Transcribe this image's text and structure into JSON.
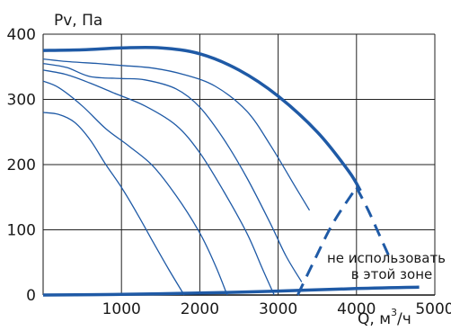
{
  "chart_data": {
    "type": "line",
    "title": "",
    "ylabel": "Pv, Па",
    "xlabel_main": "Q, м",
    "xlabel_sup": "3",
    "xlabel_tail": "/ч",
    "xlim": [
      0,
      5000
    ],
    "ylim": [
      0,
      400
    ],
    "xticks": [
      "1000",
      "2000",
      "3000",
      "4000",
      "5000"
    ],
    "yticks": [
      "0",
      "100",
      "200",
      "300",
      "400"
    ],
    "grid": true,
    "annotation": [
      "не использовать",
      "в этой зоне"
    ],
    "colors": {
      "curve": "#1f5aa6",
      "grid": "#222222",
      "axis": "#111111"
    },
    "series": [
      {
        "role": "max-envelope",
        "style": "thick",
        "x": [
          0,
          500,
          1000,
          1500,
          2000,
          2500,
          3000,
          3500,
          3900,
          4050
        ],
        "y": [
          375,
          376,
          379,
          379,
          370,
          345,
          305,
          250,
          190,
          160
        ]
      },
      {
        "role": "min-envelope",
        "style": "thick",
        "x": [
          0,
          1000,
          2000,
          3000,
          4000,
          4800
        ],
        "y": [
          0,
          1,
          3,
          6,
          10,
          12
        ]
      },
      {
        "role": "limit",
        "style": "dashed",
        "x": [
          3250,
          3450,
          3700,
          4000
        ],
        "y": [
          0,
          50,
          110,
          165
        ]
      },
      {
        "role": "limit",
        "style": "dashed",
        "x": [
          4000,
          4150,
          4300,
          4450
        ],
        "y": [
          165,
          130,
          90,
          50
        ]
      },
      {
        "style": "thin",
        "x": [
          0,
          200,
          400,
          600,
          800,
          1000,
          1200,
          1400,
          1600,
          1800
        ],
        "y": [
          280,
          277,
          265,
          238,
          200,
          165,
          125,
          82,
          40,
          0
        ]
      },
      {
        "style": "thin",
        "x": [
          0,
          200,
          500,
          800,
          1100,
          1400,
          1700,
          2000,
          2200,
          2350
        ],
        "y": [
          328,
          318,
          290,
          255,
          228,
          198,
          152,
          95,
          45,
          0
        ]
      },
      {
        "style": "thin",
        "x": [
          0,
          300,
          600,
          900,
          1300,
          1700,
          2000,
          2300,
          2600,
          2800,
          2950
        ],
        "y": [
          345,
          338,
          325,
          310,
          290,
          260,
          218,
          160,
          95,
          40,
          0
        ]
      },
      {
        "style": "thin",
        "x": [
          0,
          300,
          600,
          1000,
          1300,
          1700,
          2000,
          2300,
          2600,
          2900,
          3100,
          3300
        ],
        "y": [
          355,
          349,
          335,
          332,
          330,
          316,
          288,
          240,
          180,
          110,
          60,
          20
        ]
      },
      {
        "style": "thin",
        "x": [
          0,
          300,
          700,
          1000,
          1400,
          1800,
          2200,
          2600,
          2900,
          3200,
          3400
        ],
        "y": [
          362,
          358,
          355,
          352,
          348,
          338,
          320,
          282,
          230,
          170,
          130
        ]
      }
    ]
  }
}
